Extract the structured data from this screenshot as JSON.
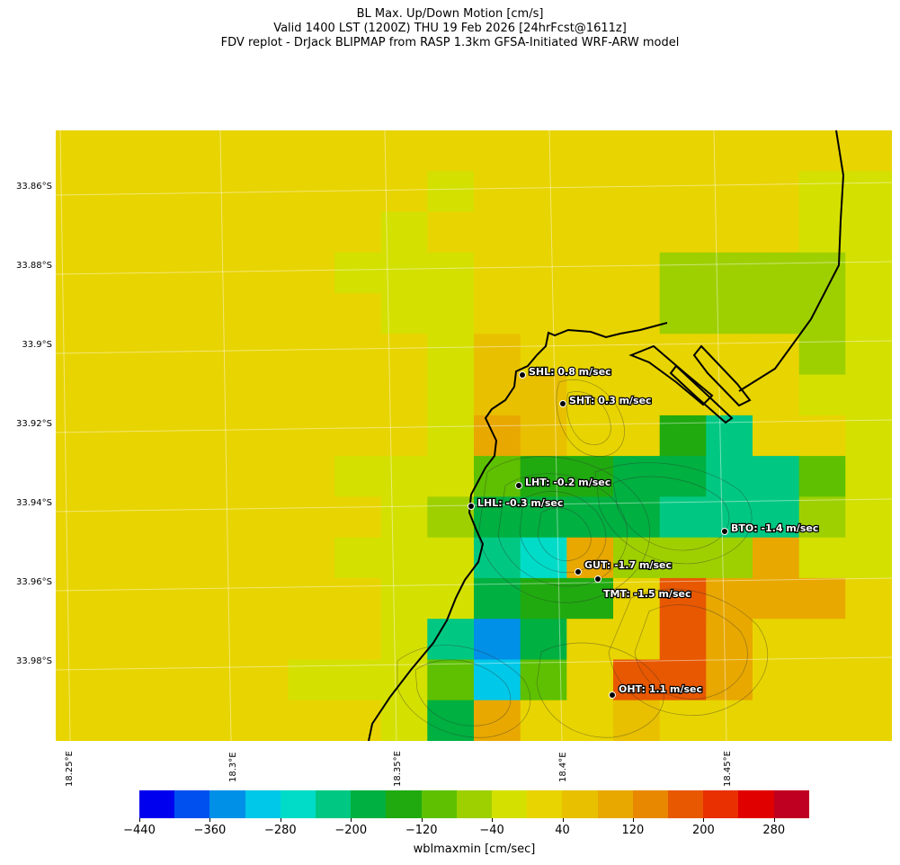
{
  "title": {
    "line1": "BL Max. Up/Down Motion [cm/s]",
    "line2": "Valid 1400 LST (1200Z) THU 19 Feb 2026 [24hrFcst@1611z]",
    "line3": "FDV replot - DrJack BLIPMAP from RASP 1.3km GFSA-Initiated WRF-ARW model"
  },
  "lat_labels": [
    "33.86°S",
    "33.88°S",
    "33.9°S",
    "33.92°S",
    "33.94°S",
    "33.96°S",
    "33.98°S"
  ],
  "lon_labels": [
    "18.25°E",
    "18.3°E",
    "18.35°E",
    "18.4°E",
    "18.45°E"
  ],
  "stations": [
    {
      "id": "SHL",
      "label": "SHL: 0.8 m/sec"
    },
    {
      "id": "SHT",
      "label": "SHT: 0.3 m/sec"
    },
    {
      "id": "LHT",
      "label": "LHT: -0.2 m/sec"
    },
    {
      "id": "LHL",
      "label": "LHL: -0.3 m/sec"
    },
    {
      "id": "BTO",
      "label": "BTO: -1.4 m/sec"
    },
    {
      "id": "GUT",
      "label": "GUT: -1.7 m/sec"
    },
    {
      "id": "TMT",
      "label": "TMT: -1.5 m/sec"
    },
    {
      "id": "OHT",
      "label": "OHT: 1.1 m/sec"
    }
  ],
  "colorbar": {
    "label": "wblmaxmin [cm/sec]",
    "ticks": [
      "−440",
      "−360",
      "−280",
      "−200",
      "−120",
      "−40",
      "40",
      "120",
      "200",
      "280"
    ],
    "colors": [
      "#0000ee",
      "#0050f0",
      "#0090e8",
      "#00c8e8",
      "#00dcc8",
      "#00c882",
      "#00b040",
      "#20aa10",
      "#5ec000",
      "#9ed000",
      "#d4e000",
      "#e8d400",
      "#e8c000",
      "#e8a800",
      "#e88800",
      "#e85800",
      "#e83000",
      "#e00000",
      "#c00020"
    ]
  },
  "colors": {
    "land_default": "#e8d400",
    "coast": "#000000"
  },
  "map_data": {
    "grid": [
      "YYYYYYYYYYYYYYYYYY",
      "YYYYYYYYLYYYYYYYLL",
      "YYYYYYYLYYYYYYYYLL",
      "YYYYYYLLLYYYYGGGGL",
      "YYYYYYYLLYYYYGGGGL",
      "YYYYYYYYLOYYYYYYGL",
      "YYYYYYYYLOOYYYYYLL",
      "YYYYYYYYLKOYYBFYYL",
      "YYYYYYLLLDBBHHTTIL",
      "YYYYYYYLGEEHHCCCGL",
      "YYYYYYLLLCSAGGGKLL",
      "YYYYYYYLLHBBYRAAKY",
      "YYYYYYYLCMEYYRAYYY",
      "YYYYYLLLDNDYRRAYYY",
      "YYYYYYYLEAYYOYYYYY"
    ],
    "legend": {
      "Y": "#e8d400",
      "L": "#d4e000",
      "G": "#9ed000",
      "O": "#e8c000",
      "K": "#e8a800",
      "D": "#5ec000",
      "B": "#20aa10",
      "H": "#00b040",
      "T": "#00c882",
      "I": "#5ec000",
      "E": "#00b040",
      "C": "#00c882",
      "S": "#00dcc8",
      "A": "#e8a800",
      "R": "#e85800",
      "M": "#0090e8",
      "N": "#00c8e8",
      "F": "#00c882"
    }
  }
}
